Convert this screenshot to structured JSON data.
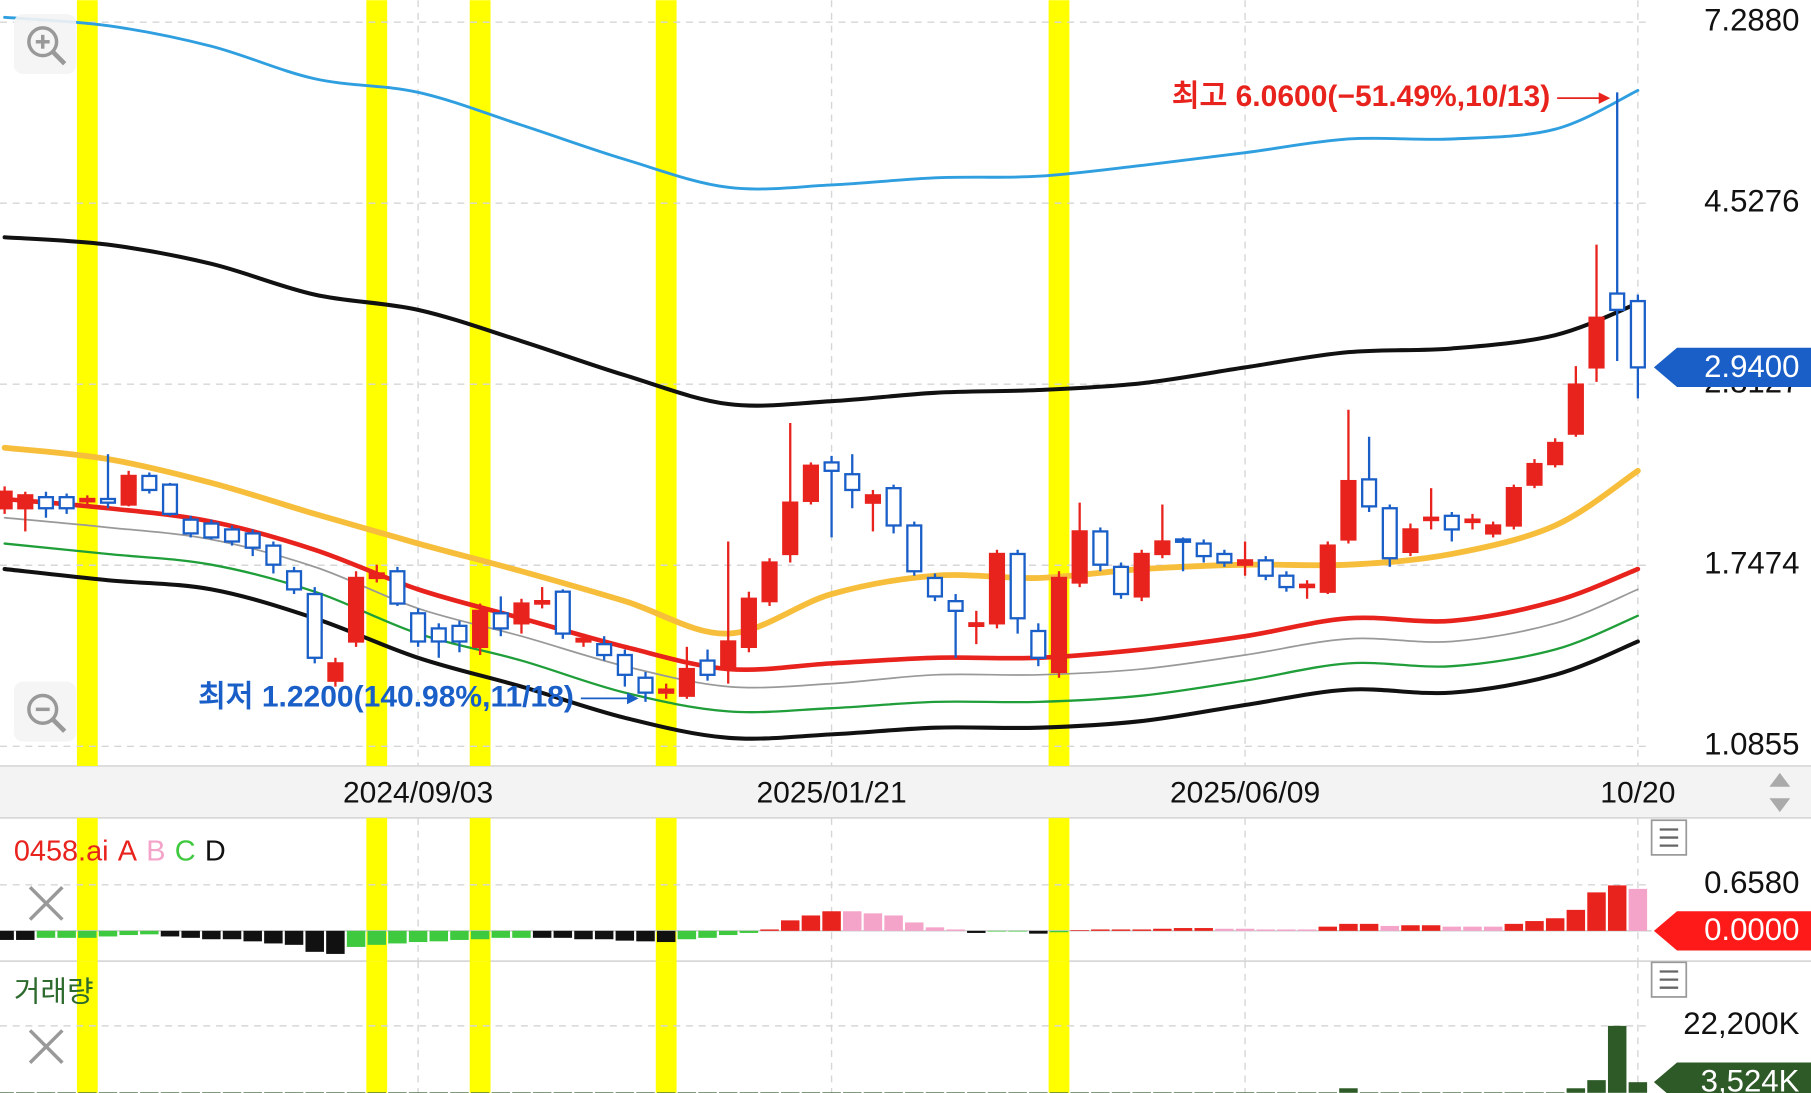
{
  "chart_data": [
    {
      "type": "candlestick",
      "categories": [
        null,
        null,
        null,
        null,
        null,
        null,
        null,
        null,
        null,
        null,
        null,
        null,
        null,
        null,
        null,
        null,
        null,
        null,
        null,
        null,
        "2024/09/03",
        null,
        null,
        null,
        null,
        null,
        null,
        null,
        null,
        null,
        null,
        null,
        null,
        null,
        null,
        null,
        null,
        null,
        null,
        null,
        "2025/01/21",
        null,
        null,
        null,
        null,
        null,
        null,
        null,
        null,
        null,
        null,
        null,
        null,
        null,
        null,
        null,
        null,
        null,
        null,
        null,
        "2025/06/09",
        null,
        null,
        null,
        null,
        null,
        null,
        null,
        null,
        null,
        null,
        null,
        null,
        null,
        null,
        null,
        null,
        null,
        null,
        "10/20"
      ],
      "open": [
        2.03,
        2.03,
        2.09,
        2.09,
        2.07,
        2.08,
        2.05,
        2.21,
        2.16,
        1.97,
        1.95,
        1.92,
        1.9,
        1.84,
        1.72,
        1.62,
        1.29,
        1.43,
        1.69,
        1.72,
        1.54,
        1.48,
        1.49,
        1.41,
        1.54,
        1.5,
        1.58,
        1.63,
        1.43,
        1.42,
        1.38,
        1.3,
        1.25,
        1.24,
        1.36,
        1.33,
        1.41,
        1.59,
        1.8,
        2.07,
        2.29,
        2.22,
        2.06,
        2.14,
        1.94,
        1.69,
        1.59,
        1.49,
        1.5,
        1.8,
        1.47,
        1.32,
        1.67,
        1.91,
        1.74,
        1.61,
        1.8,
        1.87,
        1.85,
        1.8,
        1.75,
        1.77,
        1.7,
        1.65,
        1.63,
        1.87,
        2.19,
        2.03,
        1.81,
        1.97,
        1.99,
        1.96,
        1.9,
        1.94,
        2.16,
        2.28,
        2.47,
        2.94,
        3.57,
        3.5
      ],
      "high": [
        2.15,
        2.12,
        2.12,
        2.11,
        2.1,
        2.34,
        2.24,
        2.23,
        2.17,
        1.99,
        1.97,
        1.94,
        1.92,
        1.86,
        1.74,
        1.65,
        1.37,
        1.72,
        1.75,
        1.74,
        1.56,
        1.5,
        1.51,
        1.58,
        1.61,
        1.6,
        1.65,
        1.64,
        1.46,
        1.45,
        1.4,
        1.32,
        1.28,
        1.41,
        1.4,
        1.86,
        1.63,
        1.78,
        2.54,
        2.29,
        2.33,
        2.34,
        2.13,
        2.16,
        1.96,
        1.71,
        1.62,
        1.55,
        1.82,
        1.82,
        1.5,
        1.72,
        2.06,
        1.93,
        1.76,
        1.82,
        2.05,
        1.88,
        1.87,
        1.82,
        1.86,
        1.79,
        1.72,
        1.68,
        1.86,
        2.63,
        2.45,
        2.05,
        1.95,
        2.14,
        2.01,
        2.0,
        1.96,
        2.16,
        2.31,
        2.44,
        2.95,
        4.06,
        6.06,
        3.56
      ],
      "low": [
        2.0,
        1.91,
        1.98,
        2.0,
        2.05,
        2.03,
        2.04,
        2.11,
        1.99,
        1.88,
        1.87,
        1.84,
        1.79,
        1.71,
        1.62,
        1.35,
        1.27,
        1.41,
        1.67,
        1.57,
        1.41,
        1.37,
        1.39,
        1.38,
        1.45,
        1.46,
        1.56,
        1.44,
        1.41,
        1.36,
        1.27,
        1.22,
        1.23,
        1.23,
        1.29,
        1.28,
        1.39,
        1.57,
        1.76,
        2.05,
        1.88,
        2.03,
        1.91,
        1.9,
        1.7,
        1.59,
        1.37,
        1.42,
        1.48,
        1.46,
        1.34,
        1.3,
        1.65,
        1.72,
        1.6,
        1.59,
        1.78,
        1.72,
        1.76,
        1.74,
        1.7,
        1.68,
        1.63,
        1.6,
        1.62,
        1.85,
        2.01,
        1.74,
        1.79,
        1.92,
        1.86,
        1.92,
        1.88,
        1.92,
        2.14,
        2.26,
        2.45,
        2.83,
        2.99,
        2.71
      ],
      "close": [
        2.12,
        2.1,
        2.03,
        2.03,
        2.08,
        2.06,
        2.21,
        2.13,
        2.0,
        1.9,
        1.88,
        1.86,
        1.83,
        1.75,
        1.64,
        1.37,
        1.35,
        1.69,
        1.71,
        1.58,
        1.43,
        1.43,
        1.43,
        1.55,
        1.48,
        1.58,
        1.59,
        1.46,
        1.44,
        1.38,
        1.31,
        1.25,
        1.26,
        1.33,
        1.31,
        1.43,
        1.6,
        1.76,
        2.06,
        2.27,
        2.24,
        2.13,
        2.1,
        1.94,
        1.72,
        1.61,
        1.55,
        1.5,
        1.8,
        1.52,
        1.37,
        1.69,
        1.91,
        1.75,
        1.62,
        1.8,
        1.86,
        1.86,
        1.79,
        1.76,
        1.77,
        1.7,
        1.65,
        1.66,
        1.84,
        2.18,
        2.04,
        1.78,
        1.92,
        1.98,
        1.92,
        1.97,
        1.94,
        2.14,
        2.28,
        2.41,
        2.81,
        3.35,
        3.42,
        2.94
      ],
      "up_color": "#e8231d",
      "down_color": "#1a5fc8",
      "log": true,
      "ylim": [
        1.0855,
        7.288
      ],
      "yticks": [
        1.0855,
        1.7474,
        2.8127,
        4.5276,
        {
          "value": 7.288,
          "label": "7.2880"
        }
      ],
      "grid": true,
      "lines": [
        {
          "color": "#2f9fe0",
          "width": 2.5,
          "x": [
            0,
            5,
            10,
            15,
            20,
            25,
            30,
            35,
            40,
            45,
            50,
            55,
            60,
            65,
            70,
            75,
            79
          ],
          "values": [
            7.38,
            7.22,
            6.84,
            6.28,
            6.06,
            5.56,
            5.08,
            4.72,
            4.75,
            4.84,
            4.86,
            5.0,
            5.17,
            5.36,
            5.36,
            5.5,
            6.09
          ]
        },
        {
          "color": "#111111",
          "width": 3.5,
          "x": [
            0,
            5,
            10,
            15,
            20,
            25,
            30,
            35,
            40,
            45,
            50,
            55,
            60,
            65,
            70,
            75,
            79
          ],
          "values": [
            4.14,
            4.06,
            3.86,
            3.56,
            3.42,
            3.15,
            2.88,
            2.67,
            2.69,
            2.75,
            2.77,
            2.82,
            2.94,
            3.06,
            3.09,
            3.2,
            3.48
          ]
        },
        {
          "color": "#f7be3c",
          "width": 5,
          "x": [
            0,
            5,
            10,
            15,
            20,
            25,
            30,
            35,
            40,
            45,
            50,
            55,
            60,
            65,
            70,
            75,
            79
          ],
          "values": [
            2.38,
            2.31,
            2.17,
            2.0,
            1.85,
            1.72,
            1.59,
            1.46,
            1.62,
            1.7,
            1.69,
            1.73,
            1.75,
            1.75,
            1.8,
            1.94,
            2.24
          ]
        },
        {
          "color": "#e8231d",
          "width": 4,
          "x": [
            0,
            5,
            10,
            15,
            20,
            25,
            30,
            35,
            40,
            45,
            50,
            55,
            60,
            65,
            70,
            75,
            79
          ],
          "values": [
            2.08,
            2.03,
            1.96,
            1.82,
            1.64,
            1.52,
            1.41,
            1.33,
            1.35,
            1.37,
            1.37,
            1.4,
            1.45,
            1.52,
            1.51,
            1.59,
            1.73
          ]
        },
        {
          "color": "#999999",
          "width": 1.5,
          "x": [
            0,
            5,
            10,
            15,
            20,
            25,
            30,
            35,
            40,
            45,
            50,
            55,
            60,
            65,
            70,
            75,
            79
          ],
          "values": [
            1.98,
            1.93,
            1.87,
            1.74,
            1.56,
            1.45,
            1.34,
            1.27,
            1.28,
            1.31,
            1.31,
            1.33,
            1.38,
            1.44,
            1.43,
            1.5,
            1.64
          ]
        },
        {
          "color": "#1f9e3a",
          "width": 2,
          "x": [
            0,
            5,
            10,
            15,
            20,
            25,
            30,
            35,
            40,
            45,
            50,
            55,
            60,
            65,
            70,
            75,
            79
          ],
          "values": [
            1.85,
            1.8,
            1.75,
            1.63,
            1.46,
            1.36,
            1.25,
            1.19,
            1.2,
            1.22,
            1.22,
            1.24,
            1.29,
            1.35,
            1.34,
            1.4,
            1.53
          ]
        },
        {
          "color": "#111111",
          "width": 3.5,
          "x": [
            0,
            5,
            10,
            15,
            20,
            25,
            30,
            35,
            40,
            45,
            50,
            55,
            60,
            65,
            70,
            75,
            79
          ],
          "values": [
            1.73,
            1.68,
            1.64,
            1.52,
            1.37,
            1.27,
            1.17,
            1.11,
            1.12,
            1.14,
            1.14,
            1.16,
            1.21,
            1.26,
            1.25,
            1.31,
            1.43
          ]
        }
      ],
      "highlight": [
        4,
        18,
        23,
        32,
        51
      ],
      "highlight_color": "#ffff00",
      "annotations": [
        {
          "text": "최고 6.0600(−51.49%,10/13)",
          "index": 78,
          "value": 6.06,
          "color": "#e8231d"
        },
        {
          "text": "최저 1.2200(140.98%,11/18)",
          "index": 31,
          "value": 1.22,
          "color": "#1a5fc8"
        }
      ],
      "last_value": {
        "value": 2.94,
        "label": "2.9400"
      },
      "last_color": "#1a5fc8"
    },
    {
      "type": "bar",
      "title": "0458.ai",
      "title_color": "#e8231d",
      "series": [
        {
          "name": "A",
          "color": "#e8231d",
          "values": [
            null,
            null,
            null,
            null,
            null,
            null,
            null,
            null,
            null,
            null,
            null,
            null,
            null,
            null,
            null,
            null,
            null,
            null,
            null,
            null,
            null,
            null,
            null,
            null,
            null,
            null,
            null,
            null,
            null,
            null,
            null,
            null,
            null,
            null,
            null,
            null,
            null,
            0.02,
            0.15,
            0.22,
            0.28,
            null,
            null,
            null,
            null,
            null,
            null,
            null,
            null,
            null,
            null,
            null,
            0.01,
            0.02,
            0.02,
            0.02,
            0.03,
            0.04,
            0.04,
            null,
            null,
            null,
            null,
            null,
            0.06,
            0.1,
            0.1,
            null,
            0.08,
            0.08,
            null,
            null,
            null,
            0.1,
            0.14,
            0.18,
            0.3,
            0.55,
            0.65,
            null
          ]
        },
        {
          "name": "B",
          "color": "#f4a3c9",
          "values": [
            null,
            null,
            null,
            null,
            null,
            null,
            null,
            null,
            null,
            null,
            null,
            null,
            null,
            null,
            null,
            null,
            null,
            null,
            null,
            null,
            null,
            null,
            null,
            null,
            null,
            null,
            null,
            null,
            null,
            null,
            null,
            null,
            null,
            null,
            null,
            null,
            null,
            null,
            null,
            null,
            null,
            0.28,
            0.25,
            0.22,
            0.12,
            0.05,
            0.02,
            null,
            null,
            null,
            null,
            null,
            null,
            null,
            null,
            null,
            null,
            null,
            null,
            0.03,
            0.03,
            0.02,
            0.02,
            0.02,
            null,
            null,
            null,
            0.07,
            null,
            null,
            0.06,
            0.06,
            0.06,
            null,
            null,
            null,
            null,
            null,
            null,
            0.6
          ]
        },
        {
          "name": "C",
          "color": "#3ec93e",
          "values": [
            null,
            null,
            -0.1,
            -0.1,
            -0.1,
            -0.08,
            -0.06,
            -0.05,
            null,
            null,
            null,
            null,
            null,
            null,
            null,
            null,
            null,
            -0.23,
            -0.2,
            -0.18,
            -0.16,
            -0.15,
            -0.13,
            -0.12,
            -0.1,
            -0.1,
            null,
            null,
            null,
            null,
            null,
            null,
            null,
            -0.12,
            -0.1,
            -0.06,
            -0.03,
            null,
            null,
            null,
            null,
            null,
            null,
            null,
            null,
            null,
            null,
            null,
            -0.01,
            -0.01,
            null,
            -0.02,
            null,
            null,
            null,
            null,
            null,
            null,
            null,
            null,
            null,
            null,
            null,
            null,
            null,
            null,
            null,
            null,
            null,
            null,
            null,
            null,
            null,
            null,
            null,
            null,
            null,
            null,
            null,
            null
          ]
        },
        {
          "name": "D",
          "color": "#111111",
          "values": [
            -0.13,
            -0.13,
            null,
            null,
            null,
            null,
            null,
            null,
            -0.08,
            -0.1,
            -0.12,
            -0.12,
            -0.15,
            -0.18,
            -0.2,
            -0.3,
            -0.33,
            null,
            null,
            null,
            null,
            null,
            null,
            null,
            null,
            null,
            -0.1,
            -0.1,
            -0.12,
            -0.12,
            -0.14,
            -0.15,
            -0.16,
            null,
            null,
            null,
            null,
            null,
            null,
            null,
            null,
            null,
            null,
            null,
            null,
            null,
            null,
            -0.03,
            null,
            null,
            -0.04,
            null,
            null,
            null,
            null,
            null,
            null,
            null,
            null,
            null,
            null,
            null,
            null,
            null,
            null,
            null,
            null,
            null,
            null,
            null,
            null,
            null,
            null,
            null,
            null,
            null,
            null,
            null,
            null,
            null
          ]
        }
      ],
      "ylim": [
        -0.4,
        1.4
      ],
      "yticks": [
        {
          "value": 0.658,
          "label": "0.6580"
        }
      ],
      "grid": true,
      "last_value": {
        "value": 0,
        "label": "0.0000"
      },
      "last_color": "#ff1a1a"
    },
    {
      "type": "bar",
      "title": "거래량",
      "title_color": "#2d6a2d",
      "color": "#2d5a27",
      "values": [
        200000,
        200000,
        200000,
        200000,
        200000,
        200000,
        200000,
        200000,
        200000,
        200000,
        200000,
        200000,
        200000,
        200000,
        200000,
        200000,
        200000,
        200000,
        200000,
        200000,
        200000,
        200000,
        200000,
        200000,
        200000,
        200000,
        200000,
        200000,
        200000,
        200000,
        200000,
        200000,
        200000,
        200000,
        200000,
        200000,
        200000,
        200000,
        200000,
        200000,
        200000,
        200000,
        200000,
        200000,
        200000,
        200000,
        200000,
        200000,
        200000,
        200000,
        200000,
        200000,
        200000,
        200000,
        200000,
        200000,
        200000,
        200000,
        200000,
        200000,
        200000,
        200000,
        200000,
        200000,
        200000,
        1500000,
        200000,
        200000,
        200000,
        200000,
        200000,
        200000,
        200000,
        200000,
        200000,
        200000,
        1500000,
        4200000,
        22200000,
        3524000
      ],
      "ylim": [
        0,
        24900000
      ],
      "yticks": [
        {
          "value": 22200000,
          "label": "22,200K"
        }
      ],
      "grid": true,
      "last_value": {
        "value": 3524000,
        "label": "3,524K"
      },
      "last_color": "#2d5a27"
    }
  ]
}
